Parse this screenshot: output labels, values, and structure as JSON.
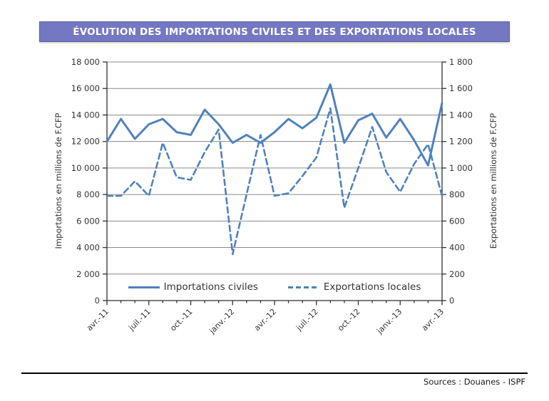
{
  "title": "ÉVOLUTION DES IMPORTATIONS CIVILES ET DES EXPORTATIONS LOCALES",
  "footer": {
    "sources": "Sources : Douanes - ISPF"
  },
  "colors": {
    "line": "#4f81bd",
    "grid": "#8a8a8a",
    "axis": "#2f2f2f",
    "text": "#333333",
    "banner_bg": "#7478c3",
    "banner_border": "#5a5e9f",
    "banner_text": "#ffffff",
    "footer_line": "#000000"
  },
  "chart_data": {
    "type": "line",
    "n_points": 25,
    "grid": "horizontal",
    "legend_position": "bottom-inside",
    "x_tick_labels": [
      "avr.-11",
      "juil.-11",
      "oct.-11",
      "janv.-12",
      "avr.-12",
      "juil.-12",
      "oct.-12",
      "janv.-13",
      "avr.-13"
    ],
    "x_label_every_n_points": 3,
    "y_left": {
      "title": "Importations en millions de F.CFP",
      "min": 0,
      "max": 18000,
      "step": 2000,
      "tick_values": [
        0,
        2000,
        4000,
        6000,
        8000,
        10000,
        12000,
        14000,
        16000,
        18000
      ],
      "tick_labels": [
        "0",
        "2 000",
        "4 000",
        "6 000",
        "8 000",
        "10 000",
        "12 000",
        "14 000",
        "16 000",
        "18 000"
      ]
    },
    "y_right": {
      "title": "Exportations en millions de F.CFP",
      "min": 0,
      "max": 1800,
      "step": 200,
      "tick_values": [
        0,
        200,
        400,
        600,
        800,
        1000,
        1200,
        1400,
        1600,
        1800
      ],
      "tick_labels": [
        "0",
        "200",
        "400",
        "600",
        "800",
        "1 000",
        "1 200",
        "1 400",
        "1 600",
        "1 800"
      ]
    },
    "series": [
      {
        "name": "Importations civiles",
        "axis": "left",
        "line_style": "solid",
        "values": [
          12000,
          13700,
          12200,
          13300,
          13700,
          12700,
          12500,
          14400,
          13300,
          11900,
          12500,
          11900,
          12700,
          13700,
          13000,
          13800,
          16300,
          11900,
          13600,
          14100,
          12300,
          13700,
          12100,
          10200,
          14900
        ]
      },
      {
        "name": "Exportations locales",
        "axis": "right",
        "line_style": "dashed",
        "values": [
          790,
          790,
          900,
          790,
          1190,
          930,
          910,
          1120,
          1290,
          350,
          800,
          1250,
          790,
          810,
          940,
          1080,
          1450,
          700,
          1000,
          1310,
          970,
          820,
          1030,
          1180,
          790
        ]
      }
    ],
    "legend": {
      "items": [
        {
          "label": "Importations civiles",
          "style": "solid"
        },
        {
          "label": "Exportations locales",
          "style": "dashed"
        }
      ]
    }
  }
}
